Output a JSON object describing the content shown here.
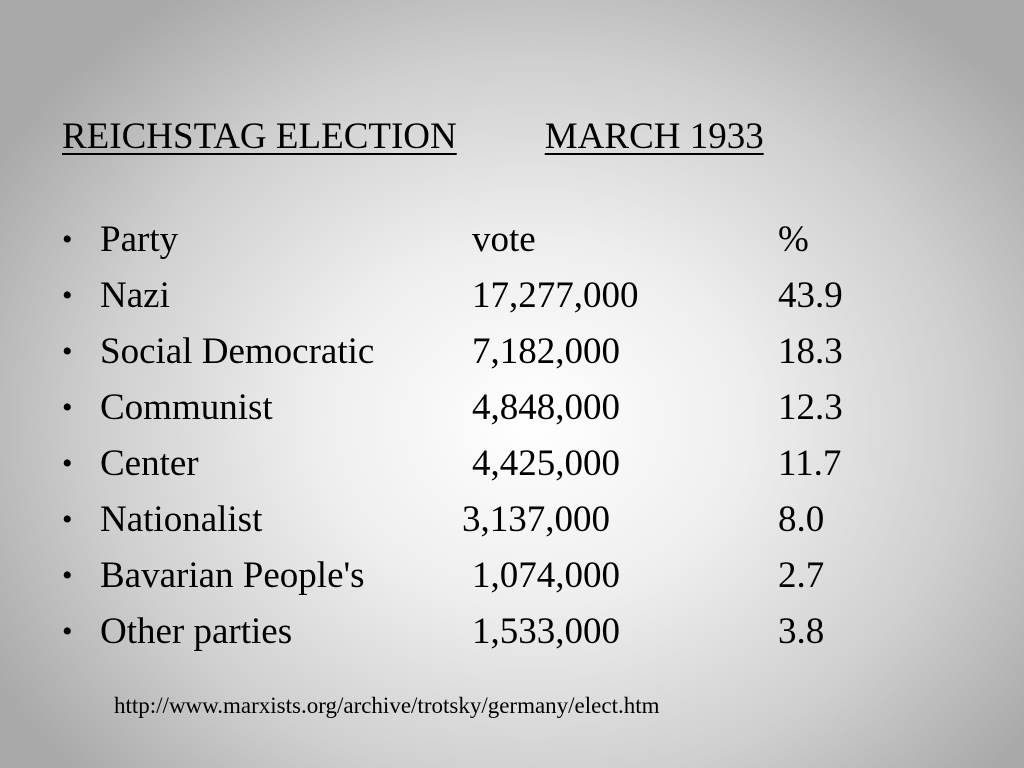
{
  "slide": {
    "title_left": "REICHSTAG ELECTION",
    "title_right": "MARCH 1933",
    "header": {
      "party": "Party",
      "vote": "vote",
      "percent": "%"
    },
    "rows": [
      {
        "party": "Nazi",
        "vote": "17,277,000",
        "percent": "43.9"
      },
      {
        "party": "Social Democratic",
        "vote": "7,182,000",
        "percent": "18.3"
      },
      {
        "party": "Communist",
        "vote": "4,848,000",
        "percent": "12.3"
      },
      {
        "party": "Center",
        "vote": "4,425,000",
        "percent": "11.7"
      },
      {
        "party": "Nationalist",
        "vote": "3,137,000",
        "percent": "8.0"
      },
      {
        "party": "Bavarian People's",
        "vote": "1,074,000",
        "percent": "2.7"
      },
      {
        "party": "Other parties",
        "vote": "1,533,000",
        "percent": "3.8"
      }
    ],
    "source": "http://www.marxists.org/archive/trotsky/germany/elect.htm",
    "bullet_char": "•"
  }
}
